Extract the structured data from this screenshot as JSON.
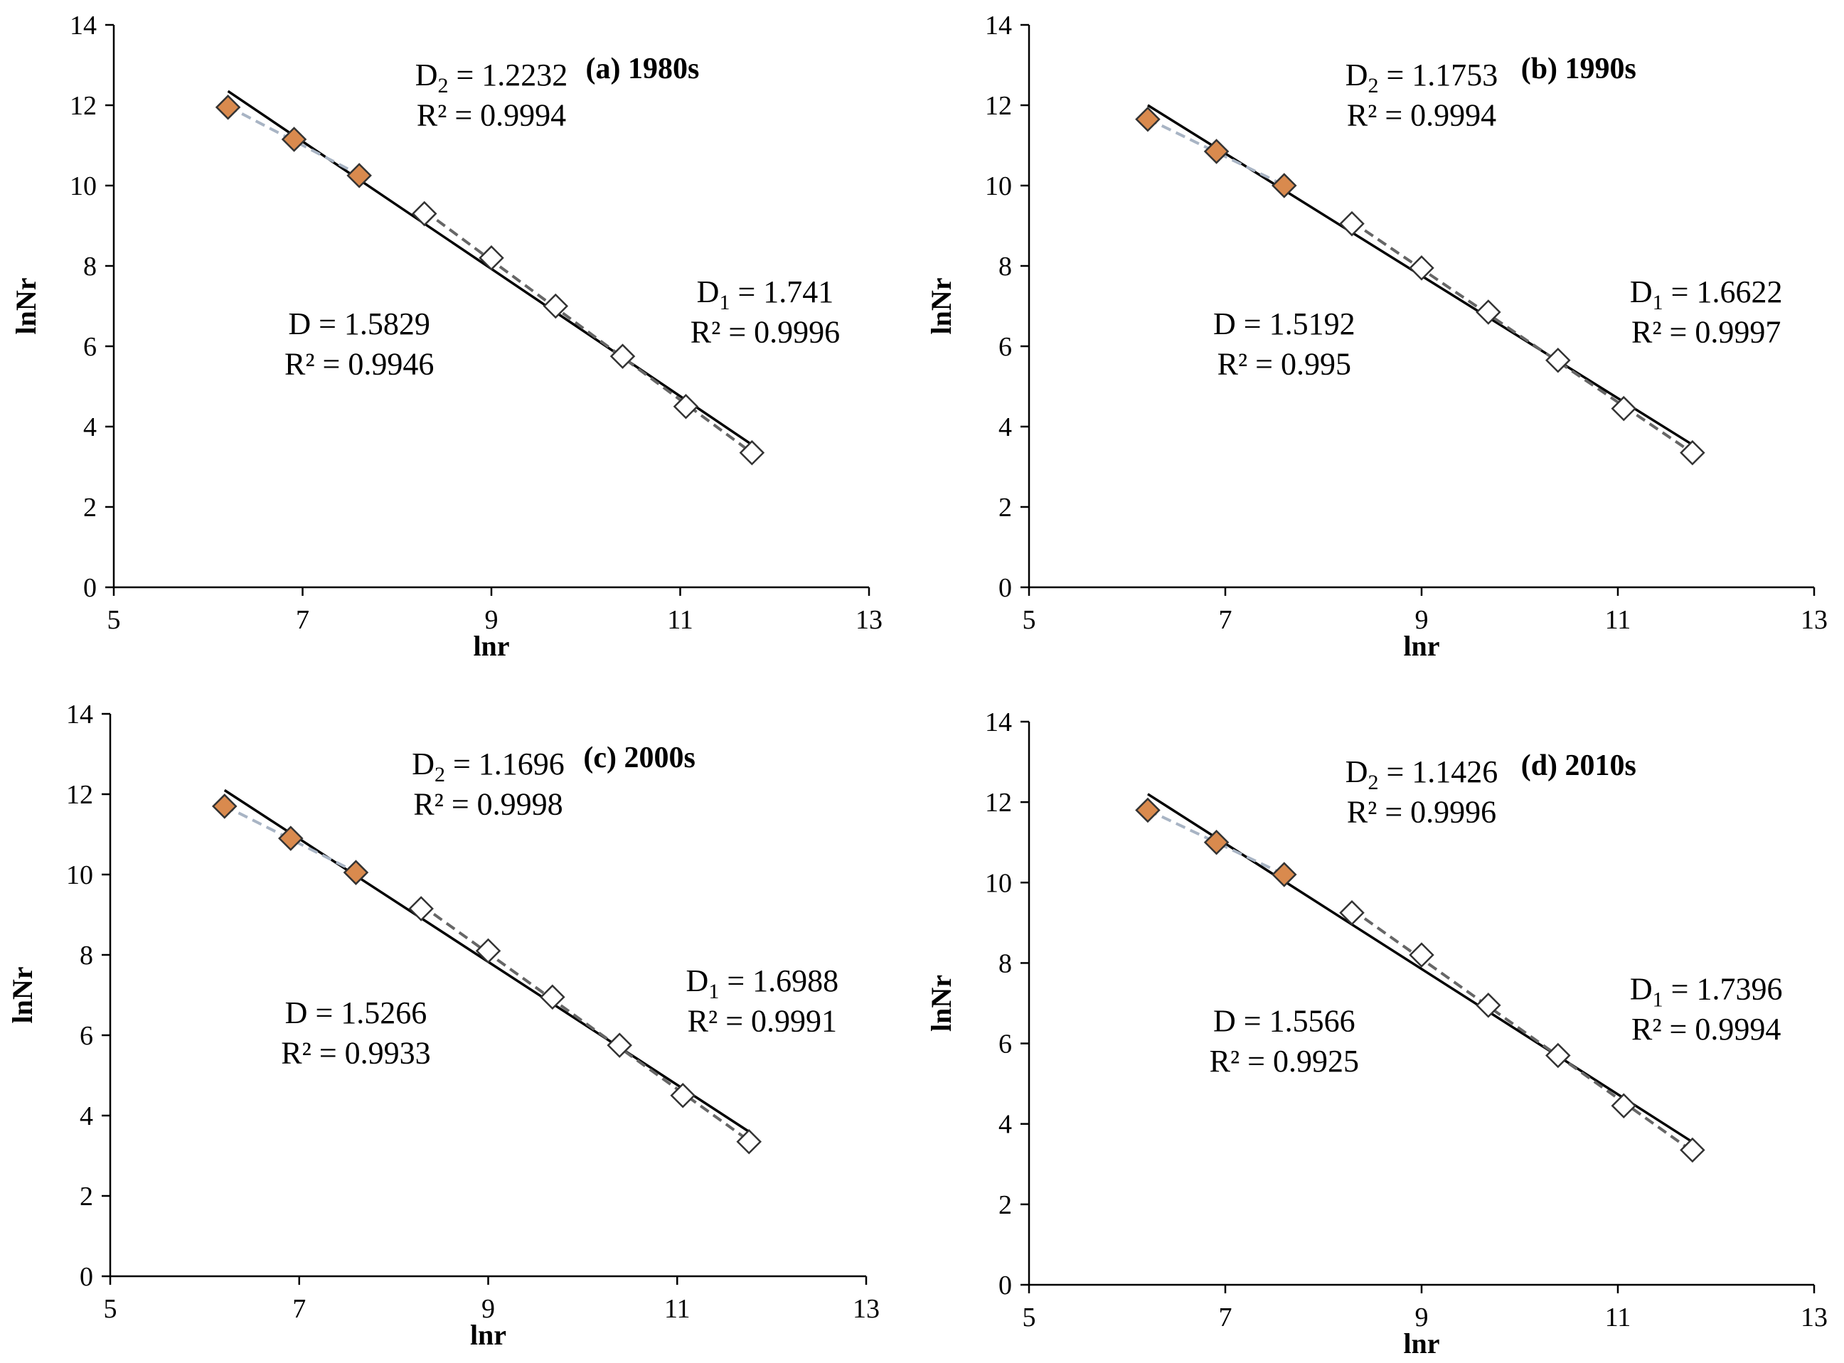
{
  "chart_data": [
    {
      "type": "scatter",
      "title": "(a) 1980s",
      "xlabel": "lnr",
      "ylabel": "lnNr",
      "xlim": [
        5,
        13
      ],
      "ylim": [
        0,
        14
      ],
      "xticks": [
        "5",
        "7",
        "9",
        "11",
        "13"
      ],
      "yticks": [
        "0",
        "2",
        "4",
        "6",
        "8",
        "10",
        "12",
        "14"
      ],
      "x": [
        6.21,
        6.91,
        7.6,
        8.29,
        9.0,
        9.68,
        10.39,
        11.06,
        11.76
      ],
      "y": [
        11.95,
        11.15,
        10.25,
        9.3,
        8.2,
        7.0,
        5.75,
        4.5,
        3.35
      ],
      "small_scale_points": 3,
      "overall_fit": {
        "D": 1.5829,
        "r2": 0.9946,
        "line": [
          [
            6.21,
            12.35
          ],
          [
            11.76,
            3.55
          ]
        ]
      },
      "small_scale_fit": {
        "D": 1.2232,
        "r2": 0.9994
      },
      "large_scale_fit": {
        "D": 1.741,
        "r2": 0.9996
      },
      "annotations": {
        "d2_label": "D",
        "d2_sub": "2",
        "d2_value": " = 1.2232",
        "r2_small": "R² = 0.9994",
        "d_text": "D = 1.5829",
        "r2_all": "R² = 0.9946",
        "d1_label": "D",
        "d1_sub": "1",
        "d1_value": " = 1.741",
        "r2_large": "R² = 0.9996"
      }
    },
    {
      "type": "scatter",
      "title": "(b) 1990s",
      "xlabel": "lnr",
      "ylabel": "lnNr",
      "xlim": [
        5,
        13
      ],
      "ylim": [
        0,
        14
      ],
      "xticks": [
        "5",
        "7",
        "9",
        "11",
        "13"
      ],
      "yticks": [
        "0",
        "2",
        "4",
        "6",
        "8",
        "10",
        "12",
        "14"
      ],
      "x": [
        6.21,
        6.91,
        7.6,
        8.29,
        9.0,
        9.68,
        10.39,
        11.06,
        11.76
      ],
      "y": [
        11.65,
        10.85,
        10.0,
        9.05,
        7.95,
        6.85,
        5.65,
        4.45,
        3.35
      ],
      "small_scale_points": 3,
      "overall_fit": {
        "D": 1.5192,
        "r2": 0.995,
        "line": [
          [
            6.21,
            12.0
          ],
          [
            11.76,
            3.55
          ]
        ]
      },
      "small_scale_fit": {
        "D": 1.1753,
        "r2": 0.9994
      },
      "large_scale_fit": {
        "D": 1.6622,
        "r2": 0.9997
      },
      "annotations": {
        "d2_label": "D",
        "d2_sub": "2",
        "d2_value": " = 1.1753",
        "r2_small": "R² = 0.9994",
        "d_text": "D = 1.5192",
        "r2_all": "R² = 0.995",
        "d1_label": "D",
        "d1_sub": "1",
        "d1_value": " = 1.6622",
        "r2_large": "R² = 0.9997"
      }
    },
    {
      "type": "scatter",
      "title": "(c) 2000s",
      "xlabel": "lnr",
      "ylabel": "lnNr",
      "xlim": [
        5,
        13
      ],
      "ylim": [
        0,
        14
      ],
      "xticks": [
        "5",
        "7",
        "9",
        "11",
        "13"
      ],
      "yticks": [
        "0",
        "2",
        "4",
        "6",
        "8",
        "10",
        "12",
        "14"
      ],
      "x": [
        6.21,
        6.91,
        7.6,
        8.29,
        9.0,
        9.68,
        10.39,
        11.06,
        11.76
      ],
      "y": [
        11.7,
        10.9,
        10.05,
        9.15,
        8.1,
        6.95,
        5.75,
        4.5,
        3.35
      ],
      "small_scale_points": 3,
      "overall_fit": {
        "D": 1.5266,
        "r2": 0.9933,
        "line": [
          [
            6.21,
            12.1
          ],
          [
            11.76,
            3.6
          ]
        ]
      },
      "small_scale_fit": {
        "D": 1.1696,
        "r2": 0.9998
      },
      "large_scale_fit": {
        "D": 1.6988,
        "r2": 0.9991
      },
      "annotations": {
        "d2_label": "D",
        "d2_sub": "2",
        "d2_value": " = 1.1696",
        "r2_small": "R² = 0.9998",
        "d_text": "D = 1.5266",
        "r2_all": "R² = 0.9933",
        "d1_label": "D",
        "d1_sub": "1",
        "d1_value": " = 1.6988",
        "r2_large": "R² = 0.9991"
      }
    },
    {
      "type": "scatter",
      "title": "(d) 2010s",
      "xlabel": "lnr",
      "ylabel": "lnNr",
      "xlim": [
        5,
        13
      ],
      "ylim": [
        0,
        14
      ],
      "xticks": [
        "5",
        "7",
        "9",
        "11",
        "13"
      ],
      "yticks": [
        "0",
        "2",
        "4",
        "6",
        "8",
        "10",
        "12",
        "14"
      ],
      "x": [
        6.21,
        6.91,
        7.6,
        8.29,
        9.0,
        9.68,
        10.39,
        11.06,
        11.76
      ],
      "y": [
        11.8,
        11.0,
        10.2,
        9.25,
        8.2,
        6.95,
        5.7,
        4.45,
        3.35
      ],
      "small_scale_points": 3,
      "overall_fit": {
        "D": 1.5566,
        "r2": 0.9925,
        "line": [
          [
            6.21,
            12.2
          ],
          [
            11.76,
            3.55
          ]
        ]
      },
      "small_scale_fit": {
        "D": 1.1426,
        "r2": 0.9996
      },
      "large_scale_fit": {
        "D": 1.7396,
        "r2": 0.9994
      },
      "annotations": {
        "d2_label": "D",
        "d2_sub": "2",
        "d2_value": " = 1.1426",
        "r2_small": "R² = 0.9996",
        "d_text": "D = 1.5566",
        "r2_all": "R² = 0.9925",
        "d1_label": "D",
        "d1_sub": "1",
        "d1_value": " = 1.7396",
        "r2_large": "R² = 0.9994"
      }
    }
  ],
  "style": {
    "filled_marker": "#d98a4e",
    "open_marker": "#ffffff",
    "marker_stroke": "#333333",
    "overall_line": "#000000",
    "small_fit_line": "#a8b4c4",
    "large_fit_line": "#666666"
  }
}
